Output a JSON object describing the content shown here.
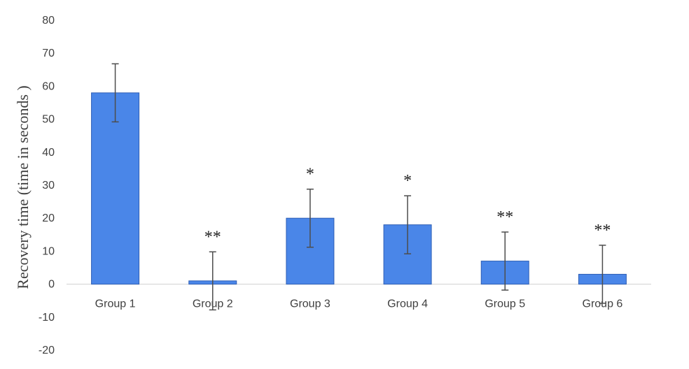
{
  "chart_data": {
    "type": "bar",
    "title": "",
    "xlabel": "",
    "ylabel": "Recovery time (time in seconds )",
    "ylim": [
      -20,
      80
    ],
    "yticks": [
      -20,
      -10,
      0,
      10,
      20,
      30,
      40,
      50,
      60,
      70,
      80
    ],
    "grid": false,
    "legend": "none",
    "bar_color": "#4a86e8",
    "bar_edge_color": "#2f5fb5",
    "categories": [
      "Group 1",
      "Group 2",
      "Group 3",
      "Group 4",
      "Group 5",
      "Group 6"
    ],
    "values": [
      58,
      1,
      20,
      18,
      7,
      3
    ],
    "errors": [
      8.8,
      8.8,
      8.8,
      8.8,
      8.8,
      8.8
    ],
    "significance": [
      "",
      "**",
      "*",
      "*",
      "**",
      "**"
    ]
  }
}
